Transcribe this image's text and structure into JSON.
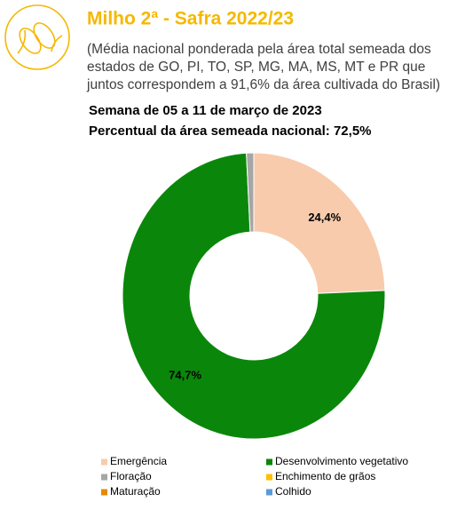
{
  "chart_data": {
    "type": "donut",
    "title": "Milho 2ª - Safra 2022/23",
    "subtitle": [
      "(Média nacional ponderada pela área total semeada dos",
      "estados de GO, PI, TO, SP, MG, MA, MS, MT e PR que",
      "juntos correspondem a 91,6% da área cultivada do Brasil)"
    ],
    "week": "Semana de 05 a 11 de março de 2023",
    "share": "Percentual da área semeada nacional: 72,5%",
    "categories": [
      "Emergência",
      "Desenvolvimento vegetativo",
      "Floração",
      "Enchimento de grãos",
      "Maturação",
      "Colhido"
    ],
    "values": [
      24.4,
      74.7,
      0.9,
      0,
      0,
      0
    ],
    "value_labels": [
      "24,4%",
      "74,7%",
      null,
      null,
      null,
      null
    ],
    "colors": [
      "#f8cbad",
      "#0a870a",
      "#a6a6a6",
      "#ffc000",
      "#e38b06",
      "#5b9bd5"
    ]
  }
}
